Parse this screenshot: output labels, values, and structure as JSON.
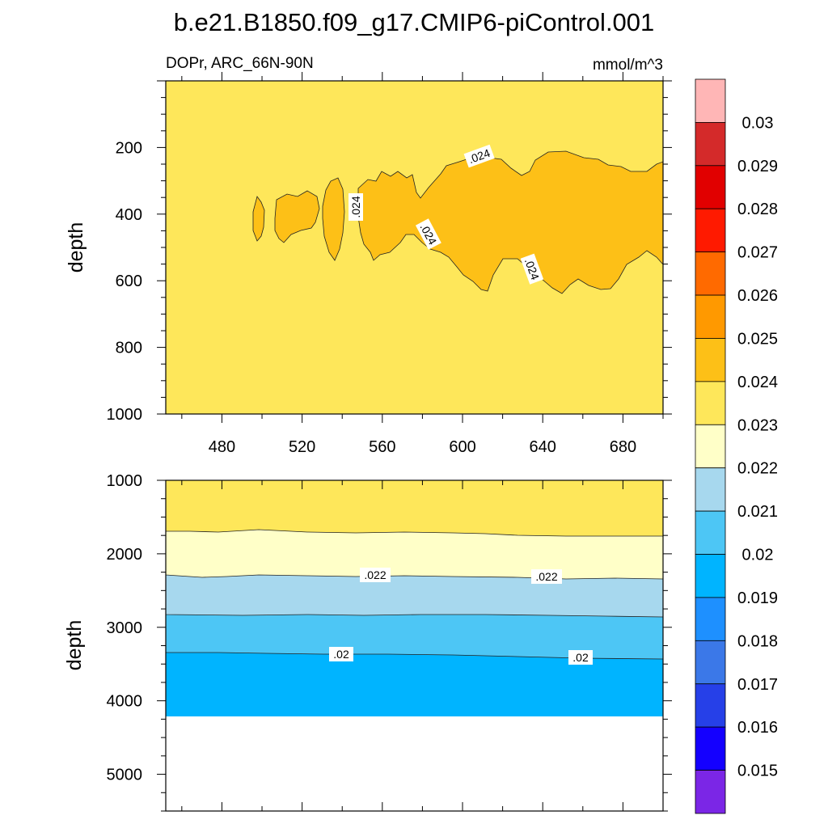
{
  "title": "b.e21.B1850.f09_g17.CMIP6-piControl.001",
  "chart_data": [
    {
      "type": "contour",
      "left_label": "DOPr, ARC_66N-90N",
      "right_label": "mmol/m^3",
      "ylabel": "depth",
      "xlim": [
        452,
        700
      ],
      "ylim": [
        1000,
        0
      ],
      "x_ticks": [
        480,
        520,
        560,
        600,
        640,
        680
      ],
      "y_ticks": [
        200,
        400,
        600,
        800,
        1000
      ],
      "background_range": [
        0.023,
        0.024
      ],
      "contour_level": 0.024,
      "contour_labels": [
        ".024",
        ".024",
        ".024",
        ".024"
      ],
      "regions": [
        {
          "range": [
            0.024,
            0.025
          ],
          "note": "blob at x ~497-502, depth ~350-465"
        },
        {
          "range": [
            0.024,
            0.025
          ],
          "note": "blob at x ~508-530, depth ~335-475"
        },
        {
          "range": [
            0.024,
            0.025
          ],
          "note": "blob at x ~533-543, depth ~310-510"
        },
        {
          "range": [
            0.024,
            0.025
          ],
          "note": "large region x ~547-700, depth ~205-640"
        }
      ]
    },
    {
      "type": "contour",
      "ylabel": "depth",
      "ylim": [
        5500,
        1000
      ],
      "y_ticks": [
        1000,
        2000,
        3000,
        4000,
        5000
      ],
      "bands": [
        {
          "range": [
            0.023,
            0.024
          ],
          "top_depth": 1000,
          "bottom_depth_left": 1670,
          "bottom_depth_right": 1740
        },
        {
          "range": [
            0.022,
            0.023
          ],
          "top_depth_left": 1670,
          "bottom_depth_left": 2260,
          "bottom_depth_right": 2290
        },
        {
          "range": [
            0.021,
            0.022
          ],
          "top_depth_left": 2260,
          "bottom_depth_left": 2800,
          "bottom_depth_right": 2820
        },
        {
          "range": [
            0.02,
            0.021
          ],
          "top_depth_left": 2800,
          "bottom_depth_left": 3280,
          "bottom_depth_right": 3370
        },
        {
          "range": [
            0.019,
            0.02
          ],
          "top_depth_left": 3280,
          "bottom_depth": 4130
        }
      ],
      "no_data_below": 4130,
      "contour_labels": [
        ".022",
        ".022",
        ".02",
        ".02"
      ]
    }
  ],
  "colorbar": {
    "colors": [
      "#FFB6B6",
      "#D42A2A",
      "#E10000",
      "#FF1A00",
      "#FF6A00",
      "#FF9900",
      "#FDC017",
      "#FEE75A",
      "#FFFFC8",
      "#A7D8EE",
      "#4DC6F5",
      "#00B4FF",
      "#1E90FF",
      "#3B78E8",
      "#2640E8",
      "#1400FF",
      "#7B26E6"
    ],
    "labels": [
      "0.03",
      "0.029",
      "0.028",
      "0.027",
      "0.026",
      "0.025",
      "0.024",
      "0.023",
      "0.022",
      "0.021",
      "0.02",
      "0.019",
      "0.018",
      "0.017",
      "0.016",
      "0.015"
    ]
  }
}
